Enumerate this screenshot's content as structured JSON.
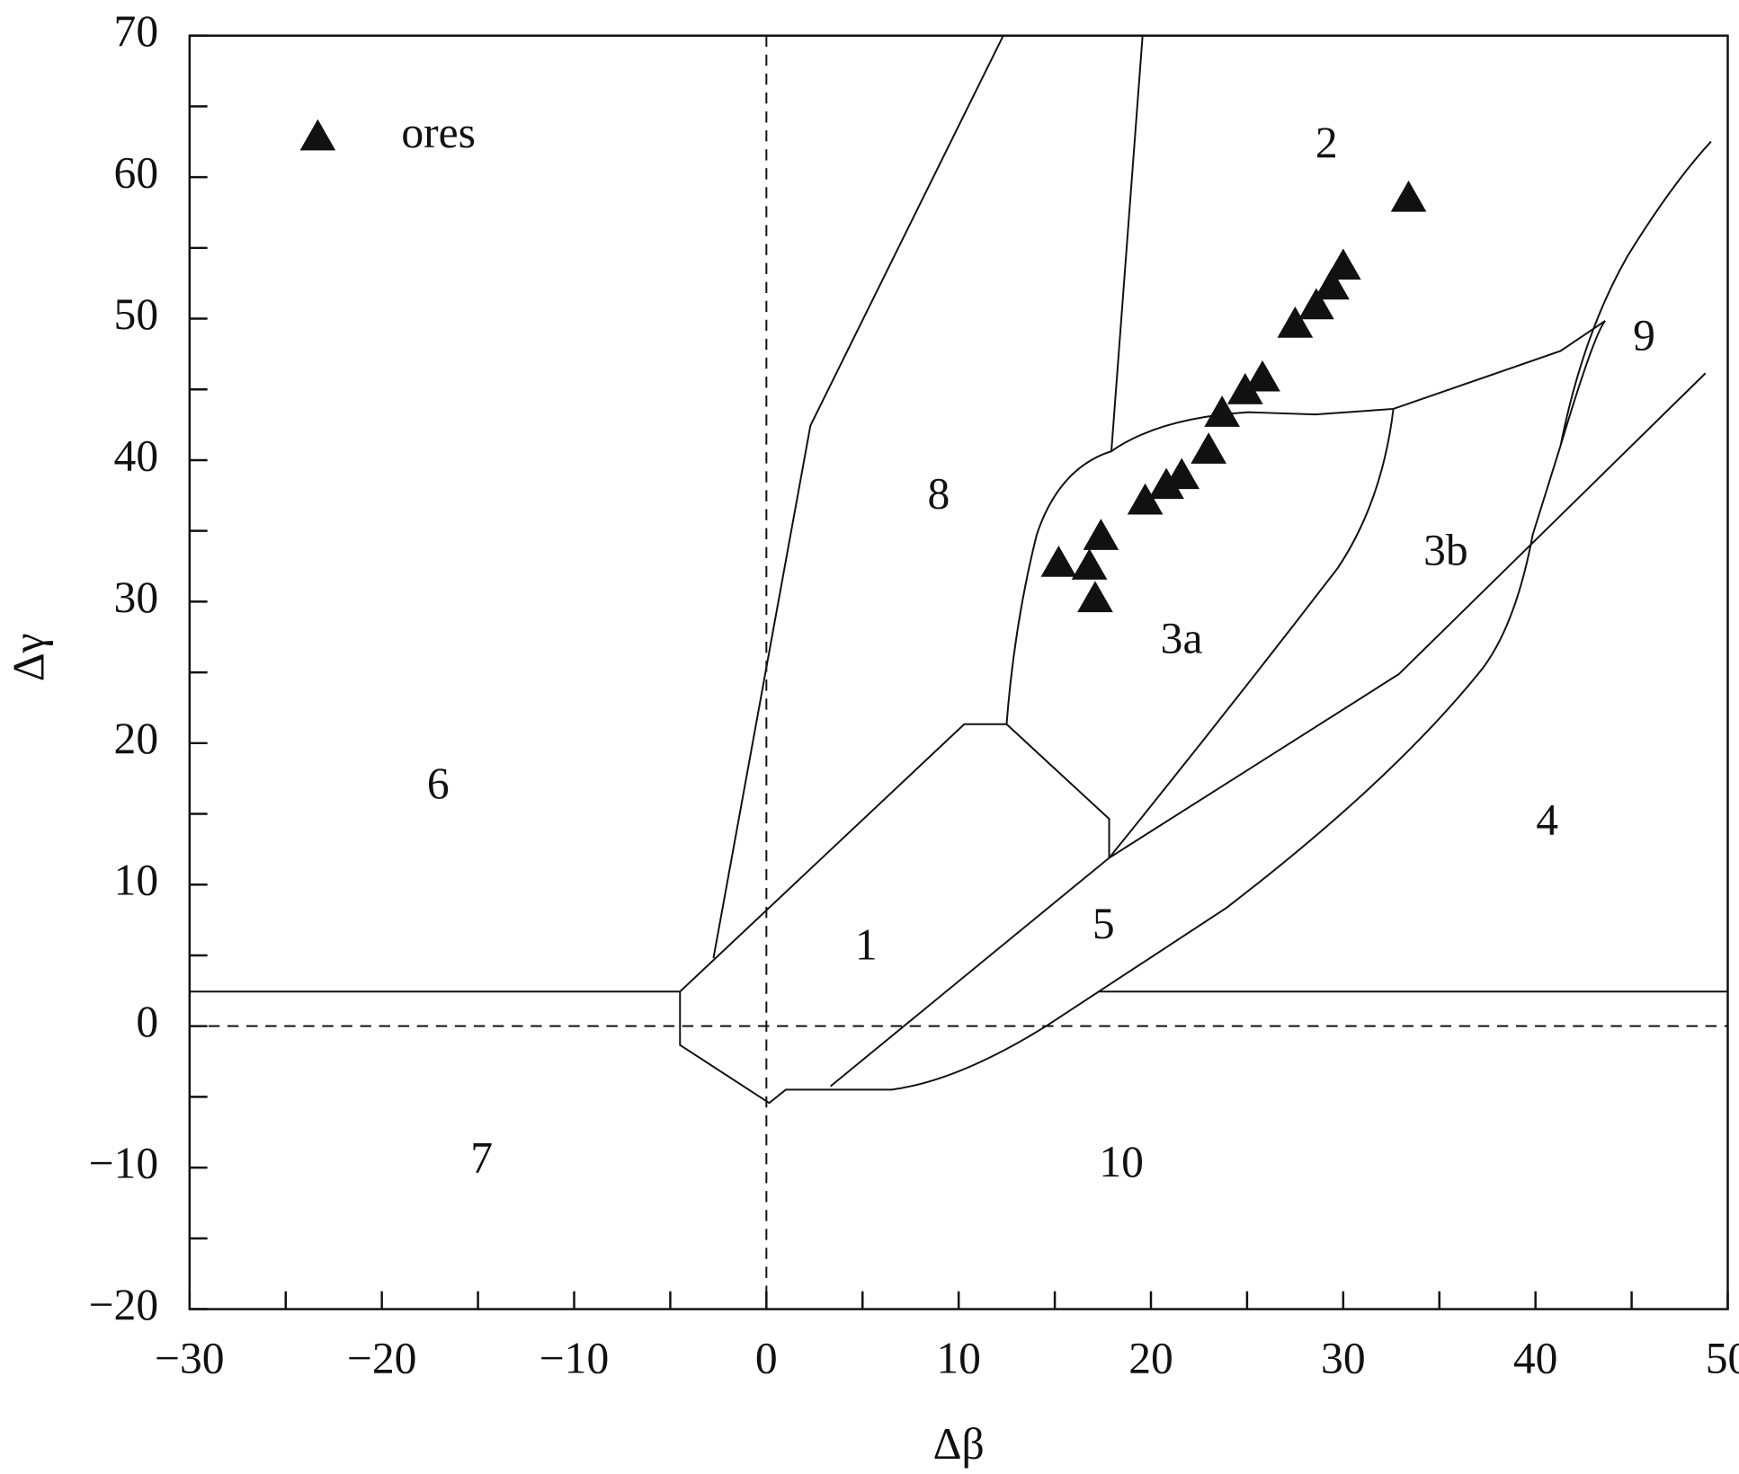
{
  "chart_data": {
    "type": "scatter",
    "x_label": "Δβ",
    "y_label": "Δγ",
    "xlim": [
      -30,
      50
    ],
    "ylim": [
      -20,
      70
    ],
    "xticks": [
      {
        "value": -30,
        "label": "−30"
      },
      {
        "value": -20,
        "label": "−20"
      },
      {
        "value": -10,
        "label": "−10"
      },
      0,
      10,
      20,
      30,
      40,
      50
    ],
    "yticks": [
      {
        "value": -20,
        "label": "−20"
      },
      {
        "value": -10,
        "label": "−10"
      },
      0,
      10,
      20,
      30,
      40,
      50,
      60,
      70
    ],
    "xminorticks": [
      -25,
      -15,
      -5,
      5,
      15,
      25,
      35,
      45
    ],
    "yminorticks": [
      -15,
      -5,
      5,
      15,
      25,
      35,
      45,
      55,
      65
    ],
    "region_labels": [
      "1",
      "2",
      "3a",
      "3b",
      "4",
      "5",
      "6",
      "7",
      "8",
      "9",
      "10"
    ],
    "series": [
      {
        "name": "ores",
        "color": "#111111",
        "x": [
          33.4,
          30.0,
          29.4,
          28.6,
          27.5,
          25.8,
          24.9,
          23.7,
          23.0,
          21.6,
          20.8,
          19.7,
          17.4,
          15.2,
          16.8,
          17.1
        ],
        "values": [
          58.5,
          53.7,
          52.3,
          50.9,
          49.6,
          45.8,
          44.9,
          43.3,
          40.7,
          38.9,
          38.2,
          37.1,
          34.6,
          32.7,
          32.5,
          30.2
        ]
      }
    ]
  }
}
